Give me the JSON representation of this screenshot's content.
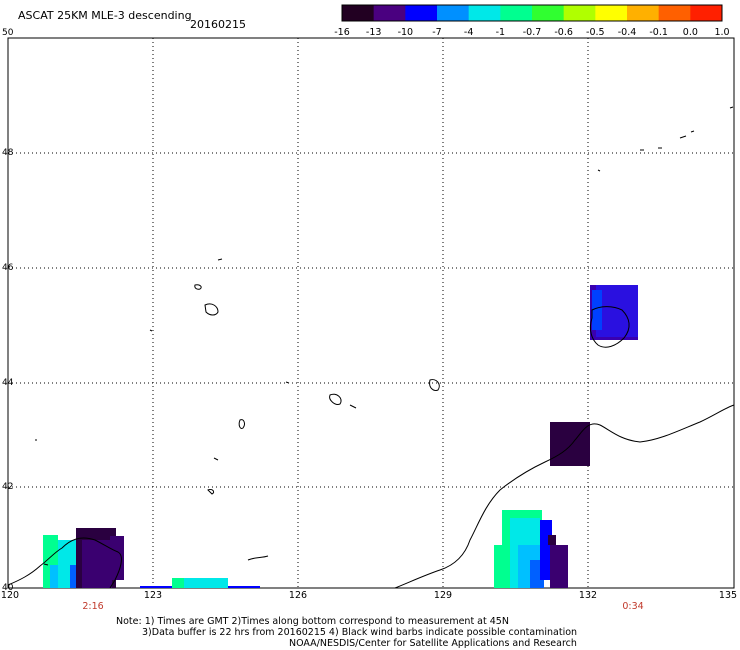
{
  "title": "ASCAT 25KM MLE-3 descending",
  "date": "20160215",
  "colorbar": {
    "labels": [
      "-16",
      "-13",
      "-10",
      "-7",
      "-4",
      "-1",
      "-0.7",
      "-0.6",
      "-0.5",
      "-0.4",
      "-0.1",
      "0.0",
      "1.0"
    ],
    "colors": [
      "#220022",
      "#4a0080",
      "#0000ff",
      "#0090ff",
      "#00e8e8",
      "#00ff90",
      "#30ff30",
      "#b0ff00",
      "#ffff00",
      "#ffb000",
      "#ff6000",
      "#ff2000"
    ]
  },
  "axes": {
    "y_labels": [
      "50",
      "48",
      "46",
      "44",
      "42",
      "40"
    ],
    "x_labels": [
      "120",
      "123",
      "126",
      "129",
      "132",
      "135"
    ],
    "time_labels": [
      "2:16",
      "0:34"
    ]
  },
  "notes": {
    "line1": "Note: 1) Times are GMT 2)Times along bottom correspond to measurement at 45N",
    "line2": "3)Data buffer is 22 hrs from 20160215 4) Black wind barbs indicate possible contamination",
    "line3": "NOAA/NESDIS/Center for Satellite Applications and Research"
  }
}
